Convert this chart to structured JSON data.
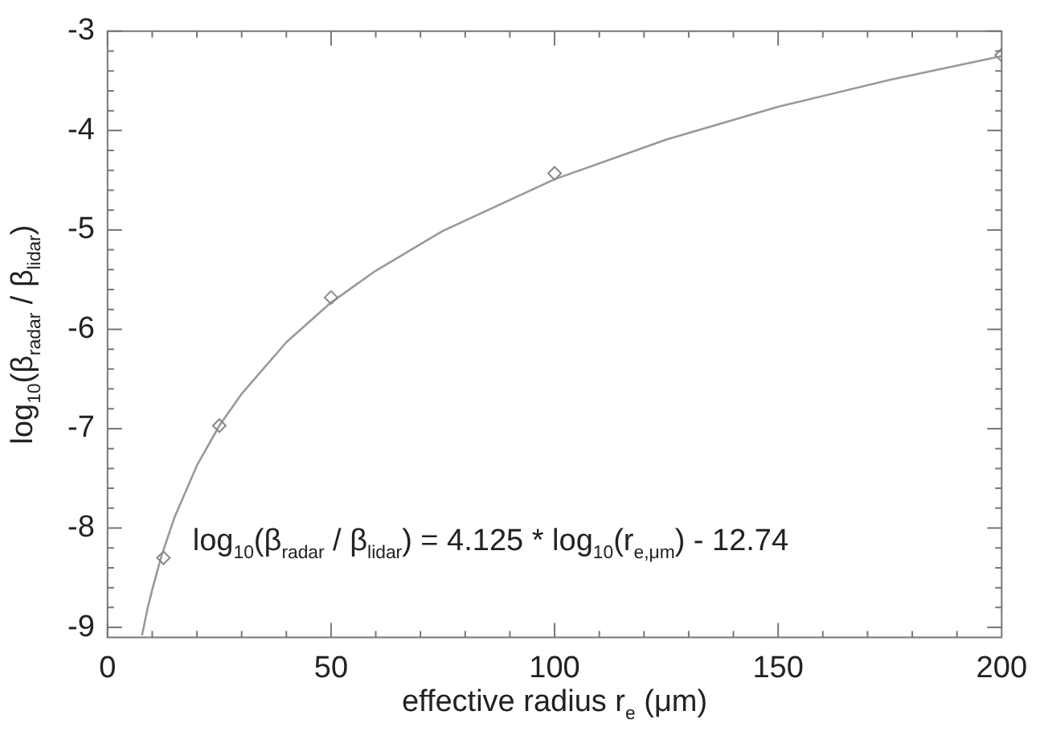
{
  "chart_data": {
    "type": "scatter",
    "xlabel": "effective radius r$_{e}$ (μm)",
    "ylabel": "log$_{10}$(β$_{radar}$ / β$_{lidar}$)",
    "xlim": [
      0,
      200
    ],
    "xticks": [
      0,
      50,
      100,
      150,
      200
    ],
    "ylim": [
      -9.1,
      -3
    ],
    "yticks": [
      -9,
      -8,
      -7,
      -6,
      -5,
      -4,
      -3
    ],
    "grid": false,
    "legend": false,
    "marker": "diamond",
    "series": [
      {
        "color": "#888888",
        "x": [
          12.5,
          25,
          50,
          100,
          200
        ],
        "values": [
          -8.3,
          -6.97,
          -5.68,
          -4.43,
          -3.24
        ]
      },
      {
        "type": "line",
        "color": "#999999",
        "line_style": "solid",
        "marker": "none",
        "x": [
          7.7,
          8,
          9,
          10,
          12,
          15,
          20,
          25,
          30,
          40,
          50,
          60,
          75,
          100,
          125,
          150,
          175,
          200
        ],
        "values": [
          -9.08,
          -9.02,
          -8.8,
          -8.62,
          -8.29,
          -7.89,
          -7.37,
          -6.97,
          -6.65,
          -6.13,
          -5.73,
          -5.41,
          -5.01,
          -4.49,
          -4.09,
          -3.76,
          -3.49,
          -3.25
        ]
      }
    ],
    "annotations": [
      "log$_{10}$(β$_{radar}$ / β$_{lidar}$) = 4.125 * log$_{10}$(r$_{e,μm}$) - 12.74"
    ]
  }
}
